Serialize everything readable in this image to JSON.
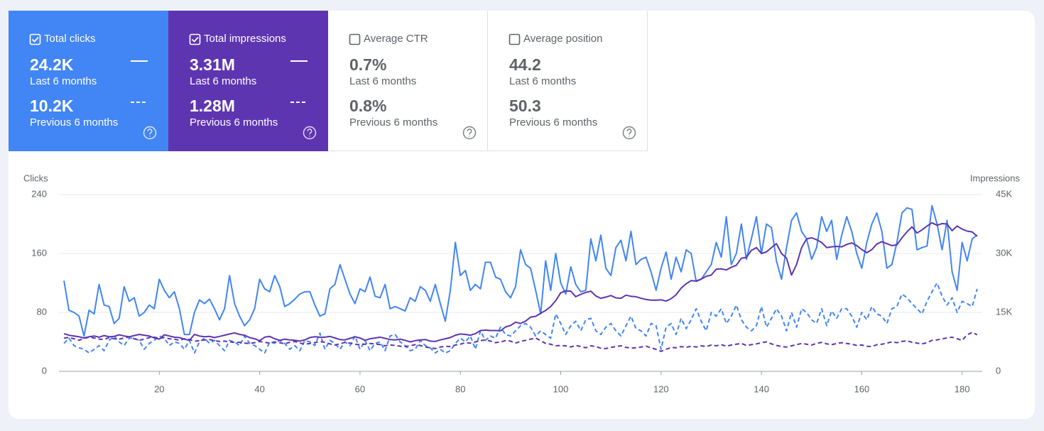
{
  "cards": [
    {
      "label": "Total clicks",
      "checked": true,
      "color": "#4285f4",
      "value": "24.2K",
      "period": "Last 6 months",
      "previous_value": "10.2K",
      "previous_period": "Previous 6 months"
    },
    {
      "label": "Total impressions",
      "checked": true,
      "color": "#5e35b1",
      "value": "3.31M",
      "period": "Last 6 months",
      "previous_value": "1.28M",
      "previous_period": "Previous 6 months"
    },
    {
      "label": "Average CTR",
      "checked": false,
      "value": "0.7%",
      "period": "Last 6 months",
      "previous_value": "0.8%",
      "previous_period": "Previous 6 months"
    },
    {
      "label": "Average position",
      "checked": false,
      "value": "44.2",
      "period": "Last 6 months",
      "previous_value": "50.3",
      "previous_period": "Previous 6 months"
    }
  ],
  "chart_data": {
    "type": "line",
    "y_label": "Clicks",
    "y2_label": "Impressions",
    "xlim": [
      0,
      184
    ],
    "xticks": [
      20,
      40,
      60,
      80,
      100,
      120,
      140,
      160,
      180
    ],
    "ylim": [
      0,
      240
    ],
    "yticks": [
      0,
      80,
      160,
      240
    ],
    "y2lim": [
      0,
      45000
    ],
    "y2ticks": [
      0,
      {
        "value": 15000,
        "label": "15K"
      },
      {
        "value": 30000,
        "label": "30K"
      },
      {
        "value": 45000,
        "label": "45K"
      }
    ],
    "grid": true,
    "x": [
      1,
      2,
      3,
      4,
      5,
      6,
      7,
      8,
      9,
      10,
      11,
      12,
      13,
      14,
      15,
      16,
      17,
      18,
      19,
      20,
      21,
      22,
      23,
      24,
      25,
      26,
      27,
      28,
      29,
      30,
      31,
      32,
      33,
      34,
      35,
      36,
      37,
      38,
      39,
      40,
      41,
      42,
      43,
      44,
      45,
      46,
      47,
      48,
      49,
      50,
      51,
      52,
      53,
      54,
      55,
      56,
      57,
      58,
      59,
      60,
      61,
      62,
      63,
      64,
      65,
      66,
      67,
      68,
      69,
      70,
      71,
      72,
      73,
      74,
      75,
      76,
      77,
      78,
      79,
      80,
      81,
      82,
      83,
      84,
      85,
      86,
      87,
      88,
      89,
      90,
      91,
      92,
      93,
      94,
      95,
      96,
      97,
      98,
      99,
      100,
      101,
      102,
      103,
      104,
      105,
      106,
      107,
      108,
      109,
      110,
      111,
      112,
      113,
      114,
      115,
      116,
      117,
      118,
      119,
      120,
      121,
      122,
      123,
      124,
      125,
      126,
      127,
      128,
      129,
      130,
      131,
      132,
      133,
      134,
      135,
      136,
      137,
      138,
      139,
      140,
      141,
      142,
      143,
      144,
      145,
      146,
      147,
      148,
      149,
      150,
      151,
      152,
      153,
      154,
      155,
      156,
      157,
      158,
      159,
      160,
      161,
      162,
      163,
      164,
      165,
      166,
      167,
      168,
      169,
      170,
      171,
      172,
      173,
      174,
      175,
      176,
      177,
      178,
      179,
      180,
      181,
      182,
      183
    ],
    "series": [
      {
        "color": "#4285f4",
        "dash": false,
        "axis": "y",
        "values": [
          123,
          83,
          80,
          75,
          48,
          83,
          78,
          118,
          90,
          88,
          65,
          72,
          115,
          95,
          100,
          75,
          80,
          90,
          85,
          125,
          110,
          100,
          108,
          85,
          50,
          50,
          80,
          97,
          92,
          98,
          85,
          70,
          85,
          130,
          92,
          75,
          62,
          70,
          85,
          125,
          112,
          108,
          130,
          115,
          88,
          92,
          98,
          105,
          108,
          108,
          90,
          75,
          78,
          112,
          118,
          145,
          125,
          105,
          92,
          112,
          108,
          128,
          102,
          100,
          118,
          85,
          88,
          85,
          82,
          100,
          95,
          115,
          110,
          95,
          118,
          92,
          68,
          110,
          175,
          130,
          137,
          110,
          118,
          112,
          148,
          148,
          128,
          125,
          108,
          100,
          115,
          165,
          145,
          140,
          110,
          78,
          150,
          110,
          160,
          120,
          105,
          142,
          118,
          108,
          110,
          180,
          150,
          185,
          140,
          130,
          168,
          178,
          150,
          190,
          145,
          152,
          155,
          135,
          110,
          140,
          162,
          125,
          155,
          135,
          165,
          160,
          122,
          125,
          135,
          145,
          175,
          155,
          210,
          145,
          160,
          200,
          152,
          180,
          210,
          160,
          200,
          195,
          150,
          125,
          168,
          205,
          215,
          190,
          180,
          152,
          168,
          210,
          190,
          205,
          152,
          185,
          210,
          190,
          160,
          140,
          175,
          200,
          215,
          190,
          140,
          145,
          175,
          215,
          222,
          220,
          165,
          168,
          170,
          225,
          200,
          165,
          205,
          135,
          110,
          175,
          150,
          180,
          185
        ]
      },
      {
        "color": "#4285f4",
        "dash": true,
        "axis": "y",
        "values": [
          38,
          45,
          35,
          32,
          30,
          25,
          30,
          35,
          28,
          42,
          48,
          40,
          35,
          45,
          45,
          42,
          30,
          38,
          42,
          48,
          45,
          35,
          40,
          38,
          30,
          42,
          25,
          40,
          45,
          38,
          42,
          35,
          28,
          42,
          40,
          35,
          48,
          38,
          35,
          30,
          25,
          40,
          38,
          42,
          38,
          30,
          35,
          28,
          42,
          40,
          35,
          52,
          30,
          42,
          38,
          30,
          40,
          35,
          48,
          30,
          42,
          28,
          38,
          40,
          28,
          48,
          50,
          40,
          35,
          28,
          30,
          42,
          35,
          32,
          25,
          30,
          25,
          28,
          38,
          45,
          40,
          48,
          30,
          55,
          42,
          48,
          45,
          60,
          50,
          48,
          55,
          62,
          65,
          60,
          48,
          55,
          50,
          45,
          78,
          65,
          50,
          62,
          68,
          55,
          70,
          72,
          55,
          50,
          60,
          65,
          55,
          48,
          62,
          75,
          58,
          55,
          48,
          65,
          62,
          30,
          60,
          65,
          50,
          72,
          58,
          70,
          85,
          68,
          55,
          80,
          75,
          85,
          65,
          75,
          90,
          70,
          60,
          55,
          62,
          88,
          60,
          72,
          85,
          75,
          55,
          80,
          60,
          85,
          80,
          70,
          65,
          85,
          62,
          82,
          72,
          85,
          85,
          75,
          60,
          80,
          70,
          88,
          78,
          75,
          65,
          85,
          88,
          105,
          100,
          92,
          85,
          78,
          95,
          108,
          120,
          102,
          90,
          100,
          80,
          95,
          92,
          88,
          112
        ]
      },
      {
        "color": "#5e35b1",
        "dash": false,
        "axis": "y2",
        "values": [
          9600,
          9200,
          9000,
          8800,
          8500,
          8800,
          9000,
          8700,
          9100,
          8800,
          8900,
          9300,
          9000,
          8800,
          9100,
          9400,
          9200,
          9000,
          8500,
          8200,
          9300,
          9000,
          8700,
          8600,
          8200,
          7900,
          9400,
          9000,
          8800,
          8900,
          8600,
          8900,
          9200,
          9500,
          9800,
          9400,
          9200,
          8600,
          8300,
          7800,
          8700,
          8900,
          8300,
          7900,
          8200,
          8000,
          7900,
          7700,
          8000,
          8600,
          8800,
          8700,
          8700,
          8900,
          8500,
          8100,
          8000,
          8400,
          8800,
          8500,
          7900,
          8300,
          8500,
          8700,
          8400,
          8100,
          8000,
          8200,
          7900,
          7500,
          7800,
          8000,
          8100,
          7700,
          7600,
          8000,
          8300,
          8600,
          9200,
          9500,
          9400,
          9200,
          9600,
          10400,
          10500,
          10400,
          10400,
          10300,
          11300,
          11700,
          12500,
          12200,
          12800,
          13800,
          14000,
          14800,
          15500,
          16500,
          18000,
          20000,
          20500,
          20400,
          19000,
          19600,
          20100,
          20400,
          19200,
          18600,
          18900,
          19300,
          18700,
          18600,
          19400,
          19100,
          19000,
          18600,
          18300,
          18100,
          18100,
          18200,
          17900,
          18500,
          19500,
          21200,
          22300,
          23100,
          23000,
          23500,
          24200,
          24500,
          26000,
          26100,
          25800,
          26500,
          27000,
          28800,
          29000,
          30800,
          31500,
          30000,
          30400,
          31500,
          32500,
          30000,
          28800,
          24500,
          27200,
          31500,
          33700,
          34000,
          33500,
          32800,
          31500,
          31700,
          31800,
          31700,
          32300,
          32700,
          32000,
          31000,
          30200,
          31000,
          32400,
          33000,
          32500,
          32000,
          32200,
          34000,
          35500,
          36800,
          35200,
          36000,
          37000,
          37800,
          37200,
          37600,
          37500,
          35800,
          37000,
          36200,
          35700,
          35500,
          34400
        ]
      },
      {
        "color": "#5e35b1",
        "dash": true,
        "axis": "y2",
        "values": [
          8500,
          8600,
          8300,
          7900,
          8400,
          8700,
          8500,
          8200,
          8100,
          8600,
          8300,
          8200,
          8500,
          8800,
          8300,
          7900,
          8200,
          8600,
          8700,
          8400,
          8600,
          8300,
          8200,
          7900,
          8300,
          8100,
          7700,
          7800,
          8000,
          8100,
          7800,
          7600,
          7700,
          7500,
          7400,
          7400,
          7200,
          7100,
          7300,
          7600,
          7400,
          7200,
          7500,
          7300,
          7000,
          7400,
          7600,
          7200,
          6900,
          7100,
          7300,
          7600,
          7400,
          7000,
          6700,
          7000,
          7400,
          7200,
          6900,
          6800,
          6900,
          7100,
          7000,
          6800,
          6500,
          6700,
          6600,
          6400,
          6300,
          6500,
          6800,
          6600,
          6200,
          6000,
          5800,
          6200,
          6400,
          6300,
          6700,
          6900,
          7300,
          7200,
          7500,
          7800,
          8000,
          7700,
          7300,
          7500,
          7800,
          7700,
          7200,
          7600,
          7900,
          8200,
          8500,
          7800,
          7100,
          6900,
          6500,
          6600,
          6500,
          6200,
          6600,
          6300,
          6000,
          6500,
          6300,
          5900,
          5800,
          6100,
          6300,
          6500,
          6100,
          5900,
          6000,
          6200,
          6400,
          6000,
          5600,
          5100,
          5600,
          6100,
          6000,
          6300,
          6100,
          6400,
          6200,
          6500,
          6300,
          6700,
          6500,
          6800,
          6400,
          6700,
          6900,
          7100,
          6600,
          6800,
          7000,
          7300,
          7500,
          7000,
          6600,
          6300,
          6200,
          6500,
          6800,
          7100,
          6900,
          6700,
          7100,
          7400,
          7000,
          6800,
          7100,
          7300,
          7100,
          6900,
          6600,
          6700,
          6400,
          6300,
          6800,
          6900,
          7200,
          7500,
          7300,
          7600,
          7800,
          7400,
          7200,
          7000,
          7300,
          7900,
          8000,
          8300,
          8500,
          8700,
          8300,
          7900,
          9300,
          9900,
          9300
        ]
      }
    ]
  }
}
